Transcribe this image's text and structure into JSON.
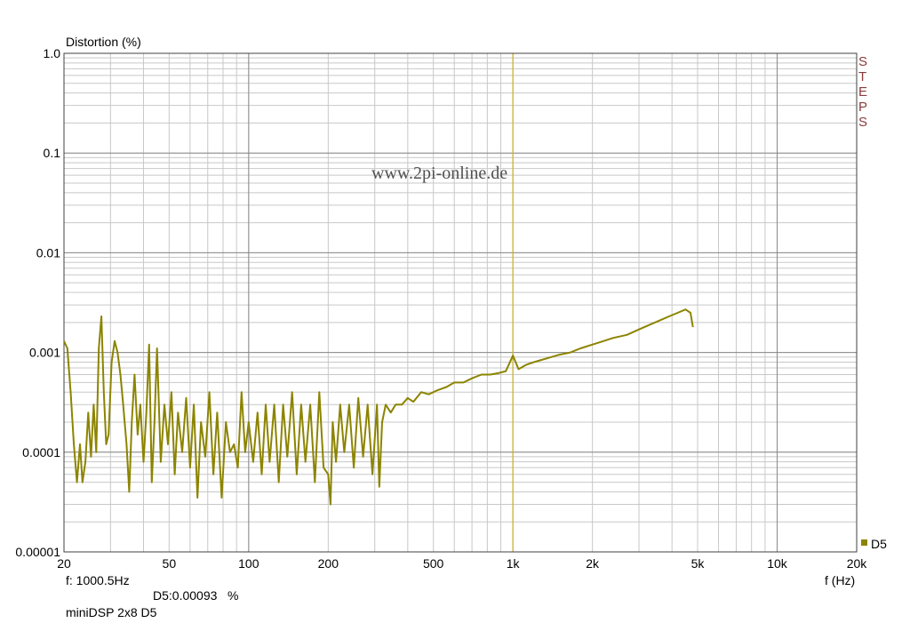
{
  "chart_data": {
    "type": "line",
    "ylabel": "Distortion (%)",
    "xlabel": "f (Hz)",
    "xscale": "log",
    "yscale": "log",
    "xlim": [
      20,
      20000
    ],
    "ylim": [
      1e-05,
      1.0
    ],
    "x_ticks": [
      {
        "value": 20,
        "label": "20"
      },
      {
        "value": 50,
        "label": "50"
      },
      {
        "value": 100,
        "label": "100"
      },
      {
        "value": 200,
        "label": "200"
      },
      {
        "value": 500,
        "label": "500"
      },
      {
        "value": 1000,
        "label": "1k"
      },
      {
        "value": 2000,
        "label": "2k"
      },
      {
        "value": 5000,
        "label": "5k"
      },
      {
        "value": 10000,
        "label": "10k"
      },
      {
        "value": 20000,
        "label": "20k"
      }
    ],
    "y_ticks": [
      {
        "value": 1.0,
        "label": "1.0"
      },
      {
        "value": 0.1,
        "label": "0.1"
      },
      {
        "value": 0.01,
        "label": "0.01"
      },
      {
        "value": 0.001,
        "label": "0.001"
      },
      {
        "value": 0.0001,
        "label": "0.0001"
      },
      {
        "value": 1e-05,
        "label": "0.00001"
      }
    ],
    "grid": true,
    "cursor": {
      "x": 1000.5
    },
    "series": [
      {
        "name": "D5",
        "color": "#8c8400",
        "points": [
          [
            20,
            0.0013
          ],
          [
            20.6,
            0.0011
          ],
          [
            21.2,
            0.0004
          ],
          [
            21.8,
            0.00012
          ],
          [
            22.4,
            5e-05
          ],
          [
            23,
            0.00012
          ],
          [
            23.5,
            5e-05
          ],
          [
            24.1,
            8e-05
          ],
          [
            24.7,
            0.00025
          ],
          [
            25.3,
            9e-05
          ],
          [
            25.9,
            0.0003
          ],
          [
            26.5,
            0.0001
          ],
          [
            27.1,
            0.0011
          ],
          [
            27.7,
            0.0023
          ],
          [
            28.3,
            0.0004
          ],
          [
            28.9,
            0.00012
          ],
          [
            29.5,
            0.00015
          ],
          [
            30.3,
            0.0008
          ],
          [
            31.1,
            0.0013
          ],
          [
            31.9,
            0.001
          ],
          [
            32.7,
            0.0006
          ],
          [
            33.5,
            0.0003
          ],
          [
            34.5,
            0.00012
          ],
          [
            35.3,
            4e-05
          ],
          [
            36.1,
            0.0002
          ],
          [
            37,
            0.0006
          ],
          [
            38,
            0.00015
          ],
          [
            38.9,
            0.0003
          ],
          [
            40,
            8e-05
          ],
          [
            41,
            0.00025
          ],
          [
            42,
            0.0012
          ],
          [
            43,
            5e-05
          ],
          [
            44,
            0.0002
          ],
          [
            45,
            0.0011
          ],
          [
            46.5,
            8e-05
          ],
          [
            48,
            0.0003
          ],
          [
            49.5,
            0.00012
          ],
          [
            51,
            0.0004
          ],
          [
            52.5,
            6e-05
          ],
          [
            54,
            0.00025
          ],
          [
            56,
            0.0001
          ],
          [
            58,
            0.00035
          ],
          [
            60,
            7e-05
          ],
          [
            62,
            0.0003
          ],
          [
            64,
            3.5e-05
          ],
          [
            66,
            0.0002
          ],
          [
            68.5,
            9e-05
          ],
          [
            71,
            0.0004
          ],
          [
            73.5,
            6e-05
          ],
          [
            76,
            0.00025
          ],
          [
            79,
            3.5e-05
          ],
          [
            82,
            0.0002
          ],
          [
            85,
            0.0001
          ],
          [
            88,
            0.00012
          ],
          [
            91,
            7e-05
          ],
          [
            94,
            0.0004
          ],
          [
            97,
            0.0001
          ],
          [
            100,
            0.0002
          ],
          [
            104,
            8e-05
          ],
          [
            108,
            0.00025
          ],
          [
            112,
            6e-05
          ],
          [
            116,
            0.0003
          ],
          [
            120,
            8e-05
          ],
          [
            125,
            0.0003
          ],
          [
            130,
            5e-05
          ],
          [
            135,
            0.0003
          ],
          [
            140,
            9e-05
          ],
          [
            146,
            0.0004
          ],
          [
            152,
            6e-05
          ],
          [
            158,
            0.0003
          ],
          [
            164,
            8e-05
          ],
          [
            171,
            0.0003
          ],
          [
            178,
            5e-05
          ],
          [
            185,
            0.0004
          ],
          [
            192,
            7e-05
          ],
          [
            200,
            6e-05
          ],
          [
            204,
            3e-05
          ],
          [
            208,
            0.0002
          ],
          [
            214,
            8e-05
          ],
          [
            222,
            0.0003
          ],
          [
            230,
            0.0001
          ],
          [
            240,
            0.0003
          ],
          [
            250,
            7e-05
          ],
          [
            260,
            0.00035
          ],
          [
            271,
            9e-05
          ],
          [
            282,
            0.0003
          ],
          [
            294,
            6e-05
          ],
          [
            306,
            0.0003
          ],
          [
            312,
            4.5e-05
          ],
          [
            320,
            0.0002
          ],
          [
            330,
            0.0003
          ],
          [
            345,
            0.00025
          ],
          [
            360,
            0.0003
          ],
          [
            380,
            0.0003
          ],
          [
            400,
            0.00035
          ],
          [
            420,
            0.00032
          ],
          [
            450,
            0.0004
          ],
          [
            480,
            0.00038
          ],
          [
            520,
            0.00042
          ],
          [
            560,
            0.00045
          ],
          [
            600,
            0.0005
          ],
          [
            650,
            0.0005
          ],
          [
            700,
            0.00055
          ],
          [
            760,
            0.0006
          ],
          [
            820,
            0.0006
          ],
          [
            880,
            0.00062
          ],
          [
            940,
            0.00065
          ],
          [
            1000,
            0.00093
          ],
          [
            1050,
            0.00068
          ],
          [
            1120,
            0.00075
          ],
          [
            1200,
            0.0008
          ],
          [
            1300,
            0.00085
          ],
          [
            1400,
            0.0009
          ],
          [
            1500,
            0.00095
          ],
          [
            1650,
            0.001
          ],
          [
            1800,
            0.0011
          ],
          [
            2000,
            0.0012
          ],
          [
            2200,
            0.0013
          ],
          [
            2400,
            0.0014
          ],
          [
            2700,
            0.0015
          ],
          [
            3000,
            0.0017
          ],
          [
            3300,
            0.0019
          ],
          [
            3600,
            0.0021
          ],
          [
            3900,
            0.0023
          ],
          [
            4200,
            0.0025
          ],
          [
            4500,
            0.0027
          ],
          [
            4700,
            0.0025
          ],
          [
            4800,
            0.0018
          ]
        ]
      }
    ]
  },
  "watermark": "www.2pi-online.de",
  "steps_letters": [
    "S",
    "T",
    "E",
    "P",
    "S"
  ],
  "legend_label": "D5",
  "cursor_freq": "f: 1000.5Hz",
  "cursor_value": "D5:0.00093   %",
  "device_label": "miniDSP 2x8 D5"
}
